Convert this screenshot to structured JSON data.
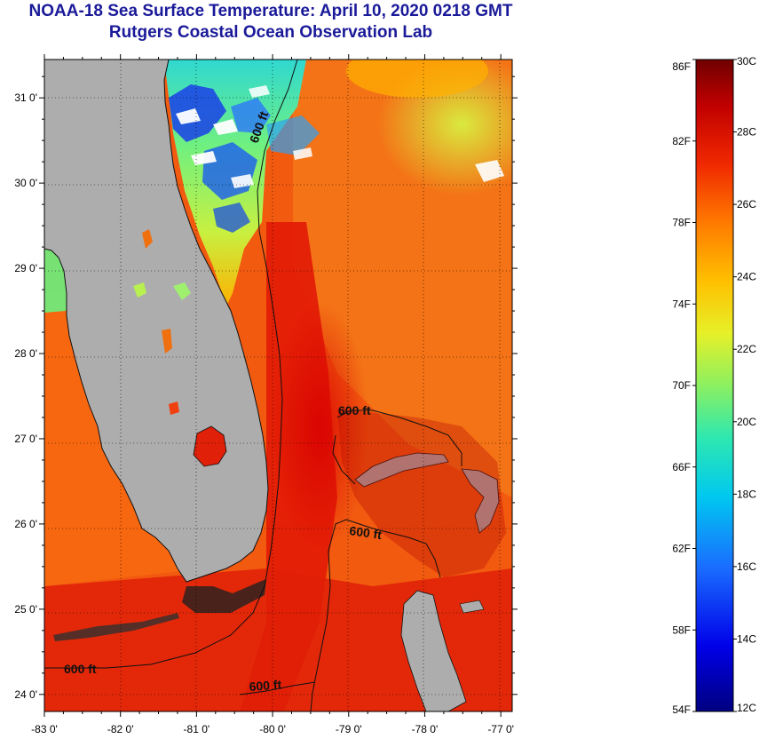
{
  "title": {
    "line1": "NOAA-18 Sea Surface Temperature:  April 10, 2020 0218 GMT",
    "line2": "Rutgers Coastal Ocean Observation Lab"
  },
  "map": {
    "lat_range": [
      23.8,
      31.45
    ],
    "lon_range": [
      -83.0,
      -76.85
    ],
    "lat_ticks": [
      {
        "value": 31,
        "label": "31 0'"
      },
      {
        "value": 30,
        "label": "30 0'"
      },
      {
        "value": 29,
        "label": "29 0'"
      },
      {
        "value": 28,
        "label": "28 0'"
      },
      {
        "value": 27,
        "label": "27 0'"
      },
      {
        "value": 26,
        "label": "26 0'"
      },
      {
        "value": 25,
        "label": "25 0'"
      },
      {
        "value": 24,
        "label": "24 0'"
      }
    ],
    "lon_ticks": [
      {
        "value": -83,
        "label": "-83 0'"
      },
      {
        "value": -82,
        "label": "-82 0'"
      },
      {
        "value": -81,
        "label": "-81 0'"
      },
      {
        "value": -80,
        "label": "-80 0'"
      },
      {
        "value": -79,
        "label": "-79 0'"
      },
      {
        "value": -78,
        "label": "-78 0'"
      },
      {
        "value": -77,
        "label": "-77 0'"
      }
    ],
    "contour_labels": [
      "600 ft",
      "600 ft",
      "600 ft",
      "600 ft",
      "600 ft"
    ],
    "land_color": "#adadad"
  },
  "colorbar": {
    "f_labels": [
      "86F",
      "82F",
      "78F",
      "74F",
      "70F",
      "66F",
      "62F",
      "58F",
      "54F"
    ],
    "c_labels": [
      "30C",
      "28C",
      "26C",
      "24C",
      "22C",
      "20C",
      "18C",
      "16C",
      "14C",
      "12C"
    ],
    "c_range": [
      12,
      30
    ]
  }
}
